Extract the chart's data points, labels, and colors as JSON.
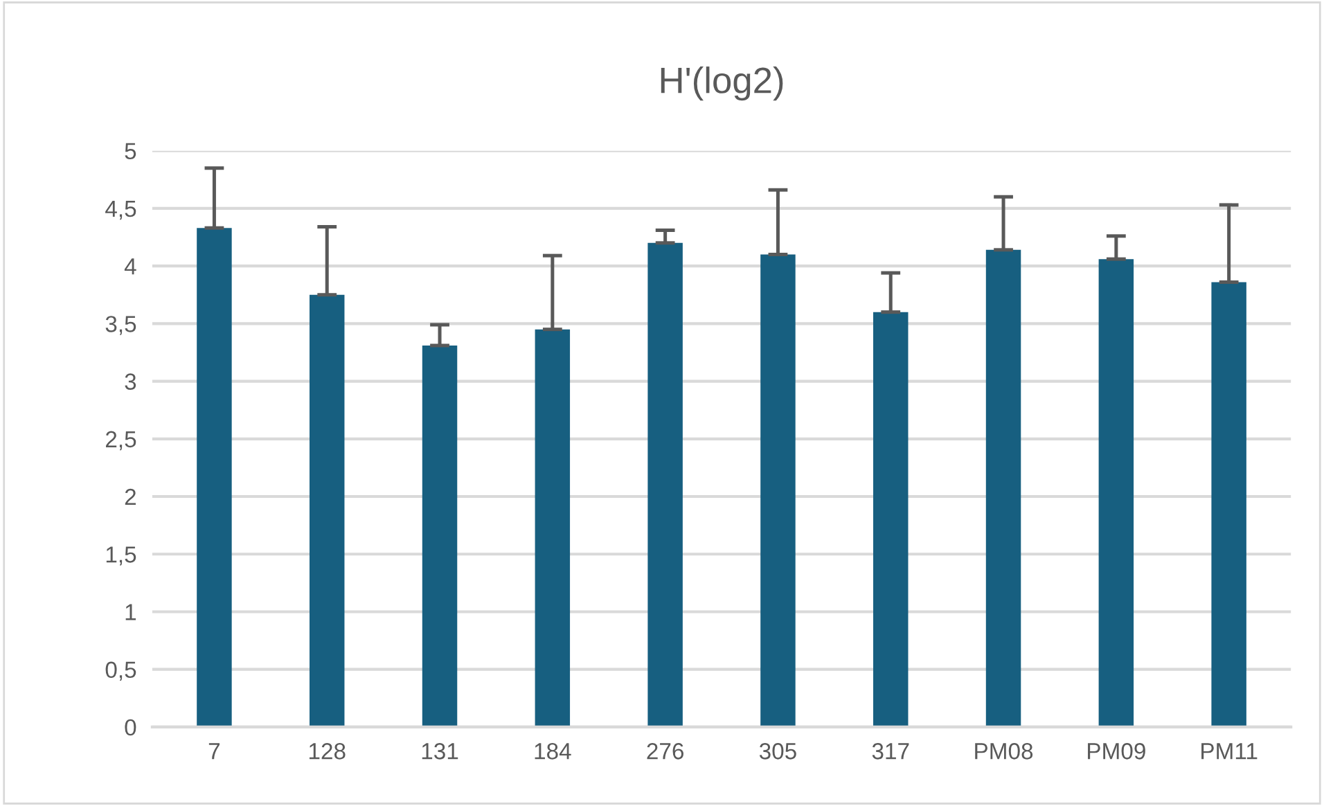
{
  "chart_data": {
    "type": "bar",
    "title": "H'(log2)",
    "categories": [
      "7",
      "128",
      "131",
      "184",
      "276",
      "305",
      "317",
      "PM08",
      "PM09",
      "PM11"
    ],
    "values": [
      4.33,
      3.75,
      3.31,
      3.45,
      4.2,
      4.1,
      3.6,
      4.14,
      4.06,
      3.86
    ],
    "errors": [
      [
        4.33,
        4.85
      ],
      [
        3.75,
        4.34
      ],
      [
        3.31,
        3.49
      ],
      [
        3.45,
        4.09
      ],
      [
        4.2,
        4.31
      ],
      [
        4.1,
        4.66
      ],
      [
        3.6,
        3.94
      ],
      [
        4.14,
        4.6
      ],
      [
        4.06,
        4.26
      ],
      [
        3.86,
        4.53
      ]
    ],
    "color": "#175f80",
    "ylim": [
      0,
      5
    ],
    "yticks": [
      0,
      {
        "value": 0.5,
        "label": "0,5"
      },
      1,
      {
        "value": 1.5,
        "label": "1,5"
      },
      2,
      {
        "value": 2.5,
        "label": "2,5"
      },
      3,
      {
        "value": 3.5,
        "label": "3,5"
      },
      4,
      {
        "value": 4.5,
        "label": "4,5"
      },
      5
    ],
    "grid": "y",
    "legend": false
  }
}
